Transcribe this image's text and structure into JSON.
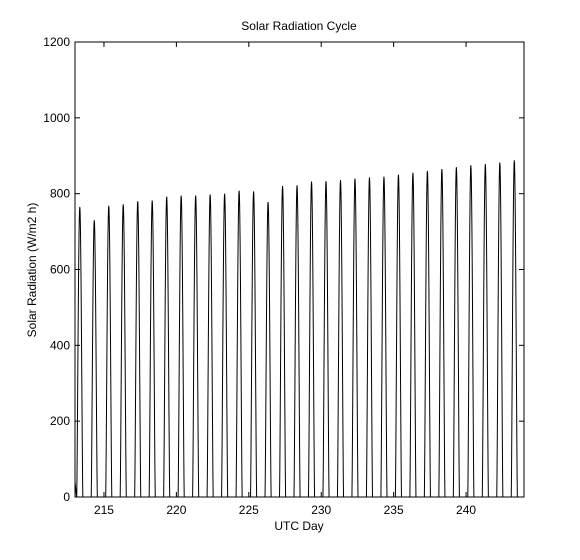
{
  "chart_data": {
    "type": "line",
    "title": "Solar Radiation Cycle",
    "xlabel": "UTC Day",
    "ylabel": "Solar Radiation (W/m2 h)",
    "xlim": [
      213,
      244
    ],
    "ylim": [
      0,
      1200
    ],
    "xticks": [
      215,
      220,
      225,
      230,
      235,
      240
    ],
    "yticks": [
      0,
      200,
      400,
      600,
      800,
      1000,
      1200
    ],
    "grid": false,
    "series": [
      {
        "color": "#000000",
        "daily_peaks": [
          {
            "day": 213,
            "peak": 765
          },
          {
            "day": 214,
            "peak": 730
          },
          {
            "day": 215,
            "peak": 768
          },
          {
            "day": 216,
            "peak": 772
          },
          {
            "day": 217,
            "peak": 780
          },
          {
            "day": 218,
            "peak": 782
          },
          {
            "day": 219,
            "peak": 792
          },
          {
            "day": 220,
            "peak": 795
          },
          {
            "day": 221,
            "peak": 795
          },
          {
            "day": 222,
            "peak": 798
          },
          {
            "day": 223,
            "peak": 800
          },
          {
            "day": 224,
            "peak": 808
          },
          {
            "day": 225,
            "peak": 806
          },
          {
            "day": 226,
            "peak": 778
          },
          {
            "day": 227,
            "peak": 820
          },
          {
            "day": 228,
            "peak": 822
          },
          {
            "day": 229,
            "peak": 832
          },
          {
            "day": 230,
            "peak": 833
          },
          {
            "day": 231,
            "peak": 836
          },
          {
            "day": 232,
            "peak": 840
          },
          {
            "day": 233,
            "peak": 843
          },
          {
            "day": 234,
            "peak": 845
          },
          {
            "day": 235,
            "peak": 850
          },
          {
            "day": 236,
            "peak": 855
          },
          {
            "day": 237,
            "peak": 860
          },
          {
            "day": 238,
            "peak": 865
          },
          {
            "day": 239,
            "peak": 870
          },
          {
            "day": 240,
            "peak": 875
          },
          {
            "day": 241,
            "peak": 878
          },
          {
            "day": 242,
            "peak": 882
          },
          {
            "day": 243,
            "peak": 888
          }
        ],
        "day_fraction": 0.42
      }
    ]
  }
}
